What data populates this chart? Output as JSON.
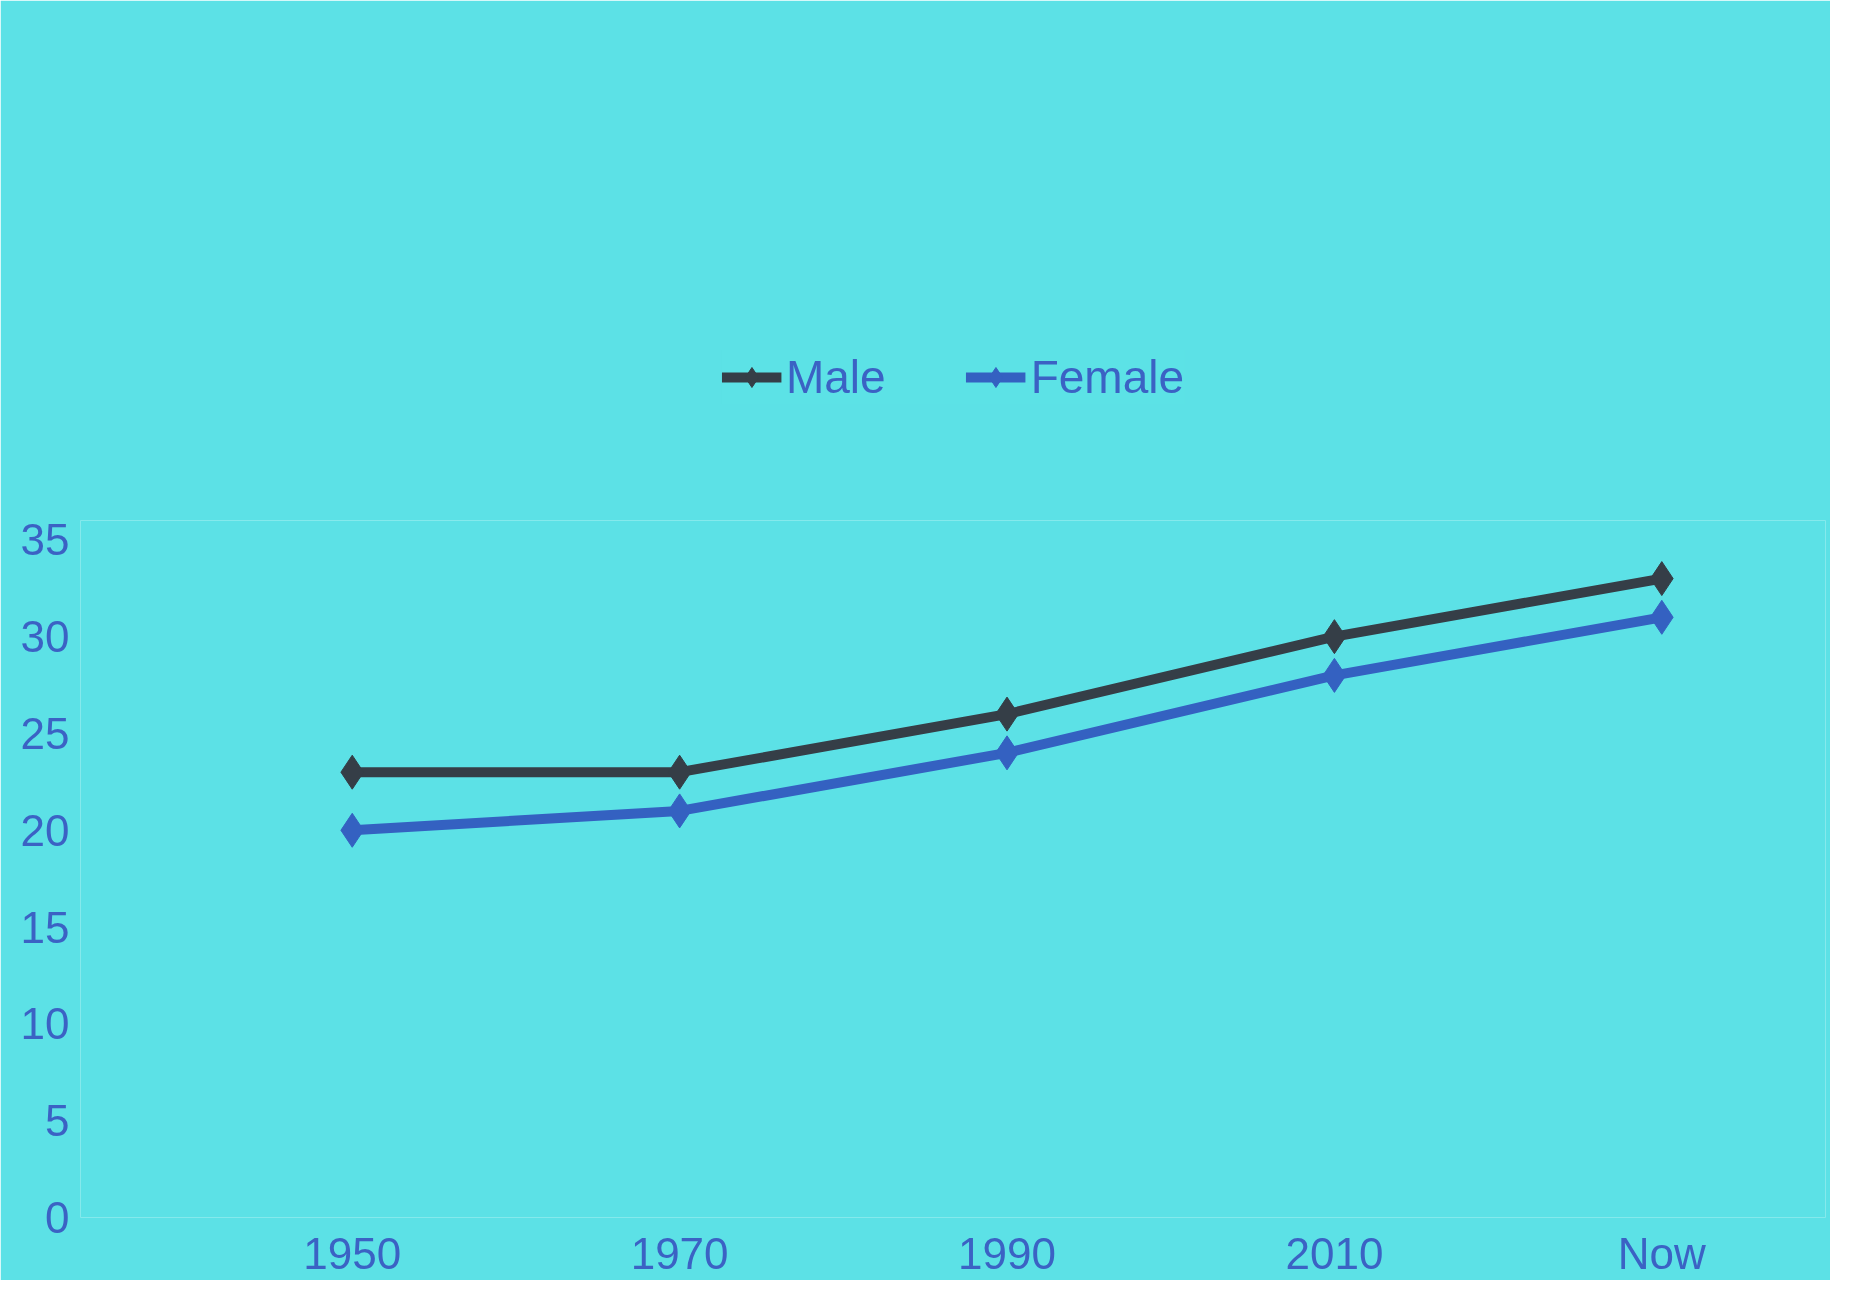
{
  "chart_data": {
    "type": "line",
    "categories": [
      "1950",
      "1970",
      "1990",
      "2010",
      "Now"
    ],
    "series": [
      {
        "name": "Male",
        "color": "#353e47",
        "values": [
          23,
          23,
          26,
          30,
          33
        ]
      },
      {
        "name": "Female",
        "color": "#3461c1",
        "values": [
          20,
          21,
          24,
          28,
          31
        ]
      }
    ],
    "ylim": [
      0,
      36
    ],
    "yticks": [
      0,
      5,
      10,
      15,
      20,
      25,
      30,
      35
    ],
    "grid": false,
    "legend": "top",
    "marker": "diamond",
    "line_style": "solid"
  }
}
